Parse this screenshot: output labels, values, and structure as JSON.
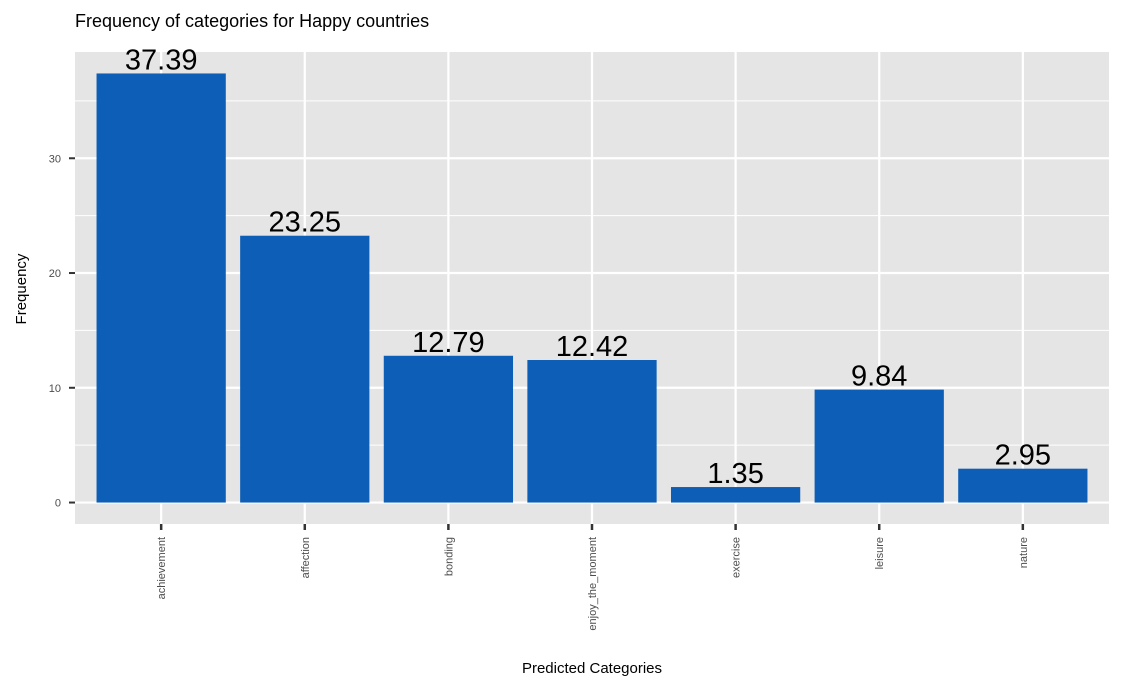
{
  "chart_data": {
    "type": "bar",
    "title": "Frequency of categories for Happy countries",
    "xlabel": "Predicted Categories",
    "ylabel": "Frequency",
    "categories": [
      "achievement",
      "affection",
      "bonding",
      "enjoy_the_moment",
      "exercise",
      "leisure",
      "nature"
    ],
    "values": [
      37.39,
      23.25,
      12.79,
      12.42,
      1.35,
      9.84,
      2.95
    ],
    "data_labels": [
      "37.39",
      "23.25",
      "12.79",
      "12.42",
      "1.35",
      "9.84",
      "2.95"
    ],
    "ylim": [
      -1.87,
      39.26
    ],
    "yticks": [
      0,
      10,
      20,
      30
    ],
    "ytick_labels": [
      "0",
      "10",
      "20",
      "30"
    ],
    "grid": true,
    "legend": "none",
    "colors": {
      "bar": "#0d5eb7",
      "panel": "#e5e5e5",
      "grid": "#ffffff",
      "tick": "#333333"
    }
  }
}
